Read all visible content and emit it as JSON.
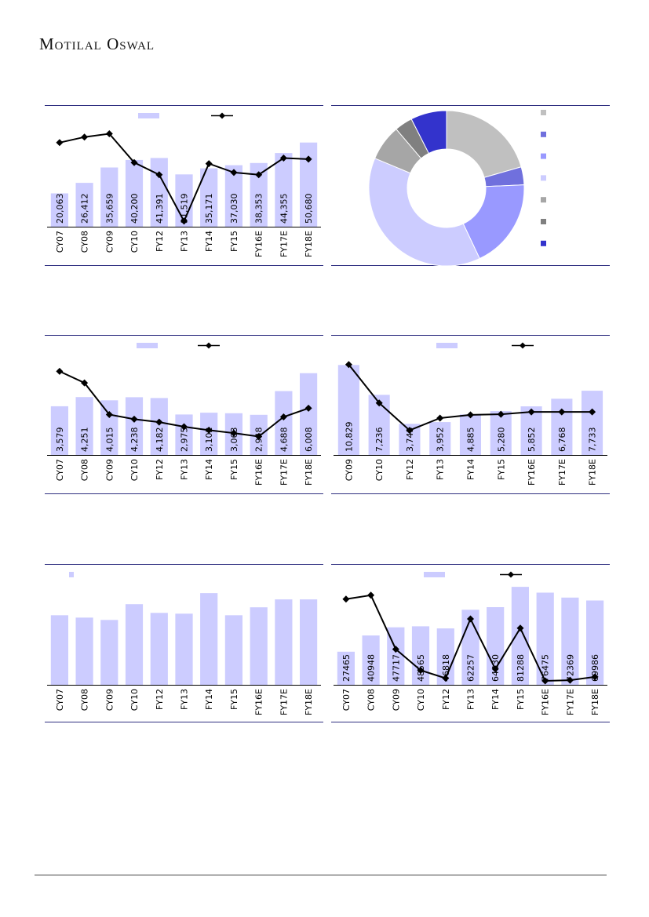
{
  "header": {
    "brand": "Motilal Oswal"
  },
  "colors": {
    "bar": "#ccccff",
    "line": "#000000",
    "rule": "#2e2e80",
    "donut": [
      "#c0c0c0",
      "#7070dd",
      "#9999ff",
      "#ccccff",
      "#a6a6a6",
      "#808080",
      "#3333cc"
    ]
  },
  "chart_data": [
    {
      "type": "bar",
      "categories": [
        "CY07",
        "CY08",
        "CY09",
        "CY10",
        "FY12",
        "FY13",
        "FY14",
        "FY15",
        "FY16E",
        "FY17E",
        "FY18E"
      ],
      "series": [
        {
          "type": "bar",
          "values": [
            20063,
            26412,
            35659,
            40200,
            41391,
            31519,
            35171,
            37030,
            38353,
            44355,
            50680
          ],
          "labels": [
            "20,063",
            "26,412",
            "35,659",
            "40,200",
            "41,391",
            "31,519",
            "35,171",
            "37,030",
            "38,353",
            "44,355",
            "50,680"
          ]
        },
        {
          "type": "line",
          "values": [
            41,
            46,
            49,
            23,
            12,
            -30,
            22,
            14,
            12,
            27,
            26
          ]
        }
      ],
      "bar_ylim": [
        0,
        60000
      ],
      "line_ylim": [
        -35,
        55
      ],
      "legend": "top"
    },
    {
      "type": "pie",
      "values": [
        22,
        4,
        20,
        41,
        8,
        4,
        8
      ],
      "legend": "right"
    },
    {
      "type": "bar",
      "categories": [
        "CY07",
        "CY08",
        "CY09",
        "CY10",
        "FY12",
        "FY13",
        "FY14",
        "FY15",
        "FY16E",
        "FY17E",
        "FY18E"
      ],
      "series": [
        {
          "type": "bar",
          "values": [
            3579,
            4251,
            4015,
            4238,
            4182,
            2975,
            3102,
            3063,
            2948,
            4688,
            6008
          ],
          "labels": [
            "3,579",
            "4,251",
            "4,015",
            "4,238",
            "4,182",
            "2,975",
            "3,102",
            "3,063",
            "2,948",
            "4,688",
            "6,008"
          ]
        },
        {
          "type": "line",
          "values": [
            28.5,
            26.5,
            21,
            20.2,
            19.7,
            18.9,
            18.3,
            17.8,
            17.2,
            20.6,
            22.1
          ]
        }
      ],
      "bar_ylim": [
        0,
        7200
      ],
      "line_ylim": [
        14,
        31
      ],
      "legend": "top"
    },
    {
      "type": "bar",
      "categories": [
        "CY09",
        "CY10",
        "FY12",
        "FY13",
        "FY14",
        "FY15",
        "FY16E",
        "FY17E",
        "FY18E"
      ],
      "series": [
        {
          "type": "bar",
          "values": [
            10829,
            7236,
            3743,
            3952,
            4885,
            5280,
            5852,
            6768,
            7733
          ],
          "labels": [
            "10,829",
            "7,236",
            "3,743",
            "3,952",
            "4,885",
            "5,280",
            "5,852",
            "6,768",
            "7,733"
          ]
        },
        {
          "type": "line",
          "values": [
            30.4,
            17.5,
            8.3,
            12.4,
            13.5,
            13.7,
            14.5,
            14.5,
            14.5
          ]
        }
      ],
      "bar_ylim": [
        0,
        11800
      ],
      "line_ylim": [
        0,
        33
      ],
      "legend": "top"
    },
    {
      "type": "bar",
      "categories": [
        "CY07",
        "CY08",
        "CY09",
        "CY10",
        "FY12",
        "FY13",
        "FY14",
        "FY15",
        "FY16E",
        "FY17E",
        "FY18E"
      ],
      "series": [
        {
          "type": "bar",
          "values": [
            88,
            85,
            82,
            102,
            91,
            90,
            116,
            88,
            98,
            108,
            108
          ]
        }
      ],
      "bar_ylim": [
        0,
        125
      ],
      "legend": "top-left"
    },
    {
      "type": "bar",
      "categories": [
        "CY07",
        "CY08",
        "CY09",
        "CY10",
        "FY12",
        "FY13",
        "FY14",
        "FY15",
        "FY16E",
        "FY17E",
        "FY18E"
      ],
      "series": [
        {
          "type": "bar",
          "values": [
            27465,
            40948,
            47717,
            48565,
            46818,
            62257,
            64430,
            81288,
            76475,
            72369,
            69986
          ],
          "labels": [
            "27465",
            "40948",
            "47717",
            "48565",
            "46818",
            "62257",
            "64430",
            "81288",
            "76475",
            "72369",
            "69986"
          ]
        },
        {
          "type": "line",
          "values": [
            60,
            63,
            22,
            6,
            0,
            45,
            7,
            38,
            -2,
            -1.5,
            1
          ]
        }
      ],
      "bar_ylim": [
        0,
        82000
      ],
      "line_ylim": [
        -5,
        70
      ],
      "legend": "top"
    }
  ]
}
